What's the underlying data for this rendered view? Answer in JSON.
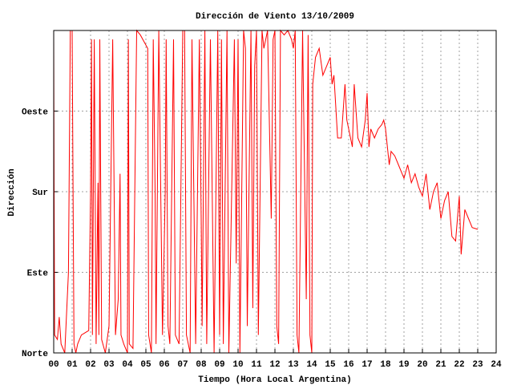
{
  "chart_data": {
    "type": "line",
    "title": "Dirección de Viento 13/10/2009",
    "xlabel": "Tiempo (Hora Local Argentina)",
    "ylabel": "Dirección",
    "xlim": [
      0,
      24
    ],
    "ylim": [
      0,
      360
    ],
    "xticks": [
      {
        "value": 0,
        "label": "00"
      },
      {
        "value": 1,
        "label": "01"
      },
      {
        "value": 2,
        "label": "02"
      },
      {
        "value": 3,
        "label": "03"
      },
      {
        "value": 4,
        "label": "04"
      },
      {
        "value": 5,
        "label": "05"
      },
      {
        "value": 6,
        "label": "06"
      },
      {
        "value": 7,
        "label": "07"
      },
      {
        "value": 8,
        "label": "08"
      },
      {
        "value": 9,
        "label": "09"
      },
      10,
      11,
      12,
      13,
      14,
      15,
      16,
      17,
      18,
      19,
      20,
      21,
      22,
      23,
      24
    ],
    "yticks": [
      {
        "value": 0,
        "label": "Norte"
      },
      {
        "value": 90,
        "label": "Este"
      },
      {
        "value": 180,
        "label": "Sur"
      },
      {
        "value": 270,
        "label": "Oeste"
      }
    ],
    "grid": true,
    "series": [
      {
        "color": "#ff0000",
        "x": [
          0,
          0.02,
          0.05,
          0.2,
          0.3,
          0.4,
          0.6,
          0.8,
          0.9,
          1.0,
          1.05,
          1.1,
          1.2,
          1.3,
          1.5,
          1.9,
          2.0,
          2.05,
          2.1,
          2.2,
          2.3,
          2.4,
          2.45,
          2.5,
          2.6,
          2.8,
          3.0,
          3.2,
          3.35,
          3.5,
          3.6,
          3.65,
          3.8,
          4.0,
          4.05,
          4.1,
          4.3,
          4.5,
          4.7,
          5.1,
          5.15,
          5.3,
          5.4,
          5.5,
          5.55,
          5.7,
          5.9,
          6.05,
          6.1,
          6.2,
          6.3,
          6.5,
          6.6,
          6.8,
          7.0,
          7.1,
          7.2,
          7.4,
          7.5,
          7.7,
          7.9,
          8.0,
          8.05,
          8.2,
          8.3,
          8.4,
          8.5,
          8.7,
          8.9,
          9.0,
          9.1,
          9.2,
          9.4,
          9.5,
          9.8,
          9.9,
          10.0,
          10.1,
          10.3,
          10.4,
          10.5,
          10.7,
          10.8,
          10.9,
          11.0,
          11.1,
          11.3,
          11.4,
          11.6,
          11.8,
          11.9,
          12.0,
          12.1,
          12.2,
          12.3,
          12.5,
          12.7,
          12.9,
          13.0,
          13.1,
          13.2,
          13.3,
          13.5,
          13.7,
          13.8,
          13.9,
          14.0,
          14.05,
          14.2,
          14.4,
          14.6,
          14.8,
          15.0,
          15.1,
          15.2,
          15.4,
          15.6,
          15.8,
          15.9,
          16.0,
          16.2,
          16.3,
          16.5,
          16.7,
          16.9,
          17.0,
          17.1,
          17.2,
          17.4,
          17.6,
          17.8,
          17.9,
          18.0,
          18.2,
          18.3,
          18.5,
          18.7,
          18.9,
          19.0,
          19.2,
          19.4,
          19.6,
          19.8,
          20.0,
          20.2,
          20.4,
          20.6,
          20.8,
          21.0,
          21.2,
          21.4,
          21.6,
          21.8,
          22.0,
          22.1,
          22.3,
          22.5,
          22.7,
          23.0
        ],
        "values": [
          360,
          190,
          20,
          15,
          40,
          10,
          0,
          90,
          360,
          360,
          180,
          10,
          0,
          10,
          20,
          25,
          180,
          350,
          20,
          350,
          10,
          190,
          20,
          350,
          15,
          0,
          30,
          350,
          20,
          60,
          200,
          20,
          10,
          0,
          350,
          10,
          5,
          360,
          355,
          340,
          20,
          0,
          350,
          180,
          10,
          360,
          20,
          180,
          350,
          30,
          10,
          350,
          20,
          10,
          360,
          360,
          20,
          0,
          350,
          10,
          350,
          150,
          30,
          360,
          10,
          180,
          350,
          0,
          360,
          20,
          350,
          10,
          360,
          0,
          350,
          100,
          350,
          0,
          360,
          340,
          30,
          360,
          50,
          320,
          360,
          20,
          360,
          340,
          360,
          150,
          350,
          360,
          30,
          10,
          360,
          355,
          360,
          350,
          340,
          360,
          20,
          0,
          360,
          60,
          355,
          20,
          0,
          300,
          330,
          340,
          310,
          320,
          330,
          300,
          310,
          240,
          240,
          300,
          260,
          250,
          230,
          300,
          240,
          230,
          260,
          290,
          230,
          250,
          240,
          250,
          255,
          260,
          250,
          210,
          225,
          220,
          210,
          200,
          195,
          210,
          190,
          200,
          185,
          175,
          200,
          160,
          180,
          190,
          150,
          170,
          180,
          130,
          125,
          175,
          110,
          160,
          150,
          140,
          138
        ]
      }
    ]
  }
}
